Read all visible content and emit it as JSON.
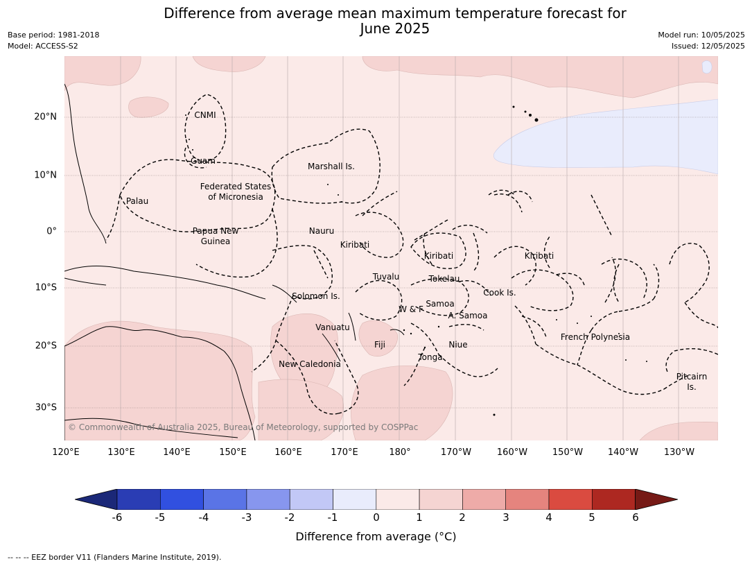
{
  "title_line1": "Difference from average mean maximum temperature forecast for",
  "title_line2": "June 2025",
  "meta_left": {
    "base_period": "Base period: 1981-2018",
    "model": "Model: ACCESS-S2"
  },
  "meta_right": {
    "model_run": "Model run: 10/05/2025",
    "issued": "Issued: 12/05/2025"
  },
  "copyright": "© Commonwealth of Australia 2025, Bureau of Meteorology, supported by COSPPac",
  "footnote": "--  --  -- EEZ border V11 (Flanders Marine Institute, 2019).",
  "map": {
    "lat_labels": [
      "20°N",
      "10°N",
      "0°",
      "10°S",
      "20°S",
      "30°S"
    ],
    "lon_labels": [
      "120°E",
      "130°E",
      "140°E",
      "150°E",
      "160°E",
      "170°E",
      "180°",
      "170°W",
      "160°W",
      "150°W",
      "140°W",
      "130°W"
    ],
    "region_labels": {
      "cnmi": "CNMI",
      "guam": "Guam",
      "marshall": "Marshall Is.",
      "fsm1": "Federated States",
      "fsm2": "of Micronesia",
      "palau": "Palau",
      "png1": "Papua New",
      "png2": "Guinea",
      "nauru": "Nauru",
      "kiribati_w": "Kiribati",
      "kiribati_c": "Kiribati",
      "kiribati_e": "Kiribati",
      "tuvalu": "Tuvalu",
      "tokelau": "Tokelau",
      "solomon": "Solomon Is.",
      "samoa": "Samoa",
      "wf": "W & F",
      "asamoa": "A. Samoa",
      "cook": "Cook Is.",
      "vanuatu": "Vanuatu",
      "fiji": "Fiji",
      "niue": "Niue",
      "tonga": "Tonga",
      "frpoly": "French Polynesia",
      "newcal": "New Caledonia",
      "pitcairn1": "Pitcairn",
      "pitcairn2": "Is."
    }
  },
  "colorbar": {
    "title": "Difference from average (°C)",
    "ticks": [
      "-6",
      "-5",
      "-4",
      "-3",
      "-2",
      "-1",
      "0",
      "1",
      "2",
      "3",
      "4",
      "5",
      "6"
    ],
    "colors": {
      "extend_low": "#1b2878",
      "n6_n5": "#2a3db4",
      "n5_n4": "#3150e0",
      "n4_n3": "#5a74e6",
      "n3_n2": "#8796ee",
      "n2_n1": "#c2c8f6",
      "n1_0": "#e9ecfc",
      "0_1": "#fbeae8",
      "1_2": "#f5d4d2",
      "2_3": "#eeaba8",
      "3_4": "#e5847e",
      "4_5": "#da4b40",
      "5_6": "#ad2821",
      "extend_high": "#761a16"
    }
  }
}
